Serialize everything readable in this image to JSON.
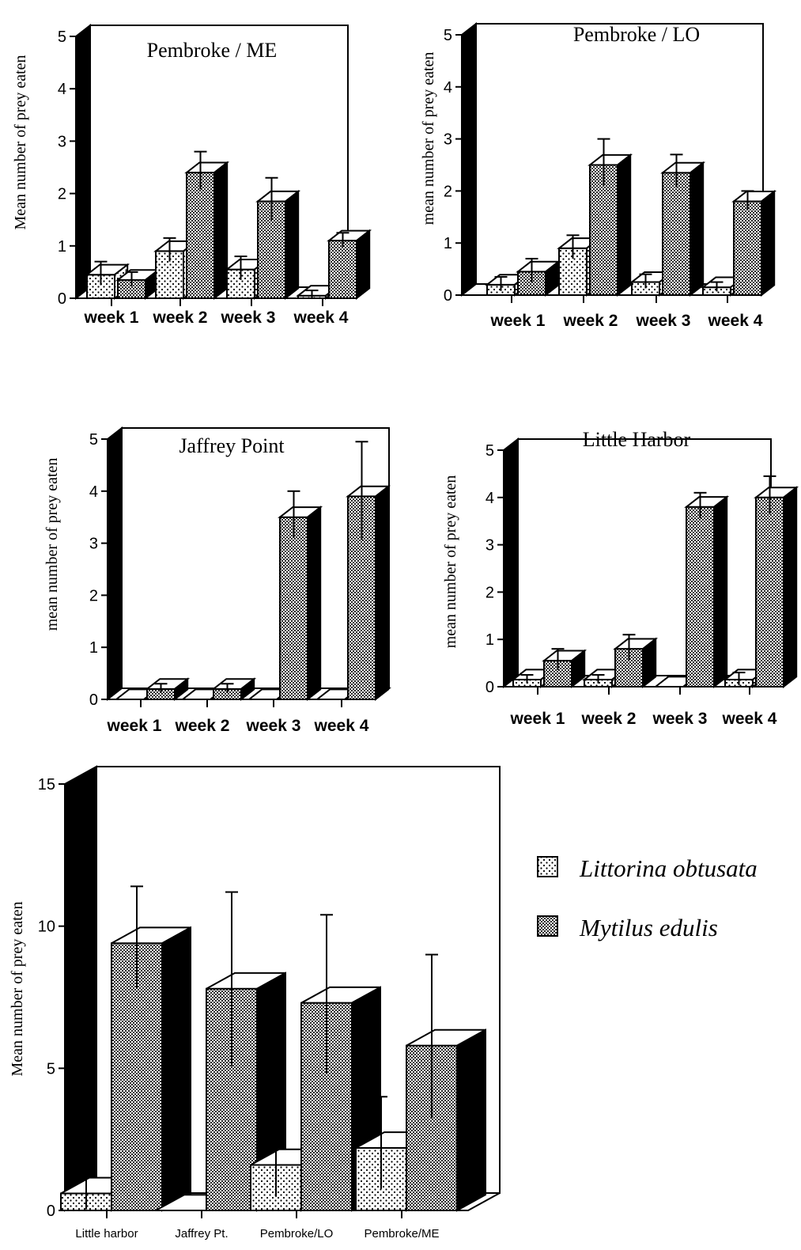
{
  "colors": {
    "ink": "#000000",
    "paper": "#ffffff",
    "shade_dark": "#000000"
  },
  "legend": {
    "items": [
      {
        "name": "Littorina obtusata",
        "pattern": "light-dots"
      },
      {
        "name": "Mytilus edulis",
        "pattern": "dense-dots"
      }
    ]
  },
  "chart_data": [
    {
      "type": "bar",
      "title": "Pembroke / ME",
      "ylabel": "Mean number of prey eaten",
      "xlabel": "",
      "categories": [
        "week  1",
        "week  2",
        "week  3",
        "week  4"
      ],
      "yticks": [
        0,
        1,
        2,
        3,
        4,
        5
      ],
      "ylim": [
        0,
        5
      ],
      "series": [
        {
          "name": "Littorina obtusata",
          "values": [
            0.45,
            0.9,
            0.55,
            0.05
          ],
          "errors": [
            0.25,
            0.25,
            0.25,
            0.1
          ]
        },
        {
          "name": "Mytilus edulis",
          "values": [
            0.35,
            2.4,
            1.85,
            1.1
          ],
          "errors": [
            0.15,
            0.4,
            0.45,
            0.15
          ]
        }
      ]
    },
    {
      "type": "bar",
      "title": "Pembroke / LO",
      "ylabel": "mean number of prey eaten",
      "xlabel": "",
      "categories": [
        "week  1",
        "week  2",
        "week  3",
        "week  4"
      ],
      "yticks": [
        0,
        1,
        2,
        3,
        4,
        5
      ],
      "ylim": [
        0,
        5
      ],
      "series": [
        {
          "name": "Littorina obtusata",
          "values": [
            0.2,
            0.9,
            0.25,
            0.15
          ],
          "errors": [
            0.15,
            0.25,
            0.15,
            0.1
          ]
        },
        {
          "name": "Mytilus edulis",
          "values": [
            0.45,
            2.5,
            2.35,
            1.8
          ],
          "errors": [
            0.25,
            0.5,
            0.35,
            0.2
          ]
        }
      ]
    },
    {
      "type": "bar",
      "title": "Jaffrey Point",
      "ylabel": "mean number of prey eaten",
      "xlabel": "",
      "categories": [
        "week  1",
        "week  2",
        "week  3",
        "week  4"
      ],
      "yticks": [
        0,
        1,
        2,
        3,
        4,
        5
      ],
      "ylim": [
        0,
        5
      ],
      "series": [
        {
          "name": "Littorina obtusata",
          "values": [
            0,
            0,
            0,
            0
          ],
          "errors": [
            0,
            0,
            0,
            0
          ]
        },
        {
          "name": "Mytilus edulis",
          "values": [
            0.2,
            0.2,
            3.5,
            3.9
          ],
          "errors": [
            0.1,
            0.1,
            0.5,
            1.05
          ]
        }
      ]
    },
    {
      "type": "bar",
      "title": "Little Harbor",
      "ylabel": "mean number of prey eaten",
      "xlabel": "",
      "categories": [
        "week  1",
        "week  2",
        "week  3",
        "week  4"
      ],
      "yticks": [
        0,
        1,
        2,
        3,
        4,
        5
      ],
      "ylim": [
        0,
        5
      ],
      "series": [
        {
          "name": "Littorina obtusata",
          "values": [
            0.15,
            0.15,
            0,
            0.15
          ],
          "errors": [
            0.1,
            0.1,
            0,
            0.15
          ]
        },
        {
          "name": "Mytilus edulis",
          "values": [
            0.55,
            0.8,
            3.8,
            4.0
          ],
          "errors": [
            0.25,
            0.3,
            0.3,
            0.45
          ]
        }
      ]
    },
    {
      "type": "bar",
      "title": "",
      "ylabel": "Mean number of prey eaten",
      "xlabel": "",
      "categories": [
        "Little harbor",
        "Jaffrey Pt.",
        "Pembroke/LO",
        "Pembroke/ME"
      ],
      "yticks": [
        0,
        5,
        10,
        15
      ],
      "ylim": [
        0,
        15
      ],
      "series": [
        {
          "name": "Littorina obtusata",
          "values": [
            0.6,
            0,
            1.6,
            2.2
          ],
          "errors": [
            0.7,
            0,
            1.4,
            1.8
          ]
        },
        {
          "name": "Mytilus edulis",
          "values": [
            9.4,
            7.8,
            7.3,
            5.8
          ],
          "errors": [
            2.0,
            3.4,
            3.1,
            3.2
          ]
        }
      ]
    }
  ]
}
